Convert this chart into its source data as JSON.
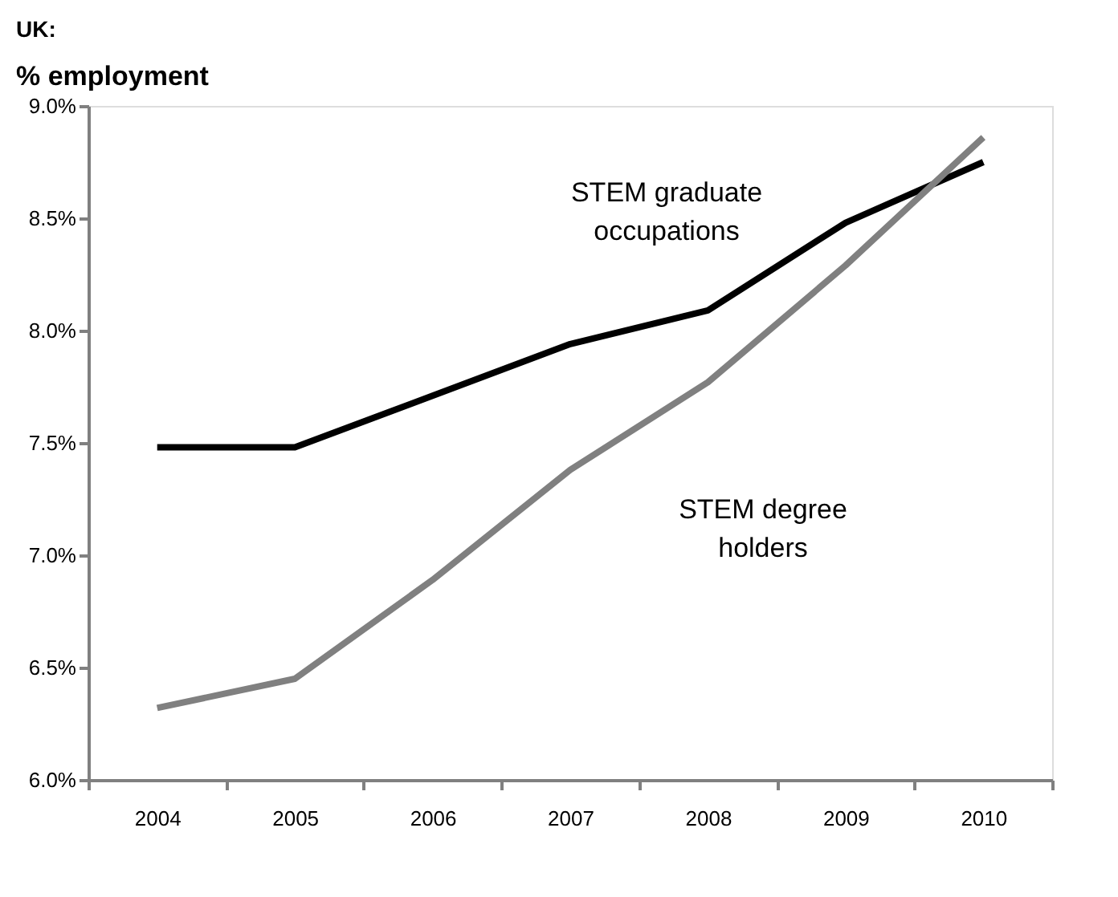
{
  "chart_data": {
    "type": "line",
    "title": "UK:",
    "ylabel": "% employment",
    "categories": [
      "2004",
      "2005",
      "2006",
      "2007",
      "2008",
      "2009",
      "2010"
    ],
    "series": [
      {
        "name": "STEM graduate occupations",
        "color": "#000000",
        "values": [
          7.48,
          7.48,
          7.71,
          7.94,
          8.09,
          8.48,
          8.75
        ]
      },
      {
        "name": "STEM degree holders",
        "color": "#808080",
        "values": [
          6.32,
          6.45,
          6.89,
          7.38,
          7.77,
          8.29,
          8.86
        ]
      }
    ],
    "ylim": [
      6.0,
      9.0
    ],
    "yticks": [
      {
        "value": 6.0,
        "label": "6.0%"
      },
      {
        "value": 6.5,
        "label": "6.5%"
      },
      {
        "value": 7.0,
        "label": "7.0%"
      },
      {
        "value": 7.5,
        "label": "7.5%"
      },
      {
        "value": 8.0,
        "label": "8.0%"
      },
      {
        "value": 8.5,
        "label": "8.5%"
      },
      {
        "value": 9.0,
        "label": "9.0%"
      }
    ],
    "grid": false,
    "legend": false,
    "marker": "none",
    "line_style": "solid"
  }
}
